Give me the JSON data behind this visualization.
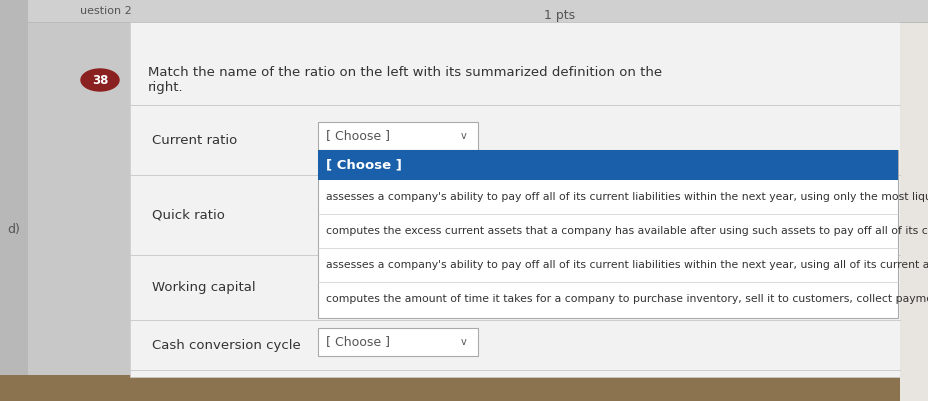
{
  "bg_outer": "#c8c8c8",
  "bg_left_panel": "#d8d8d8",
  "bg_main": "#f2f2f2",
  "bg_top_bar": "#e2e2e2",
  "bg_right_edge": "#e8e5e0",
  "title_pts": "1 pts",
  "question_num": "38",
  "question_num_bg": "#8b2020",
  "instruction_line1": "Match the name of the ratio on the left with its summarized definition on the",
  "instruction_line2": "right.",
  "ratios": [
    "Current ratio",
    "Quick ratio",
    "Working capital",
    "Cash conversion cycle"
  ],
  "blue_item": "[ Choose ]",
  "blue_bg": "#1a5faa",
  "blue_text_color": "#ffffff",
  "dropdown_items": [
    "[ Choose ]",
    "assesses a company's ability to pay off all of its current liabilities within the next year, using only the most liquid of its its",
    "computes the excess current assets that a company has available after using such assets to pay off all of its current liabilit",
    "assesses a company's ability to pay off all of its current liabilities within the next year, using all of its current assets.",
    "computes the amount of time it takes for a company to purchase inventory, sell it to customers, collect payment, less the"
  ],
  "font_color": "#333333",
  "font_color_light": "#888888",
  "separator_color": "#cccccc",
  "dropdown_border": "#aaaaaa",
  "white": "#ffffff",
  "cursor_label": "[ Choose ]",
  "choose_label": "[ Choose ]"
}
